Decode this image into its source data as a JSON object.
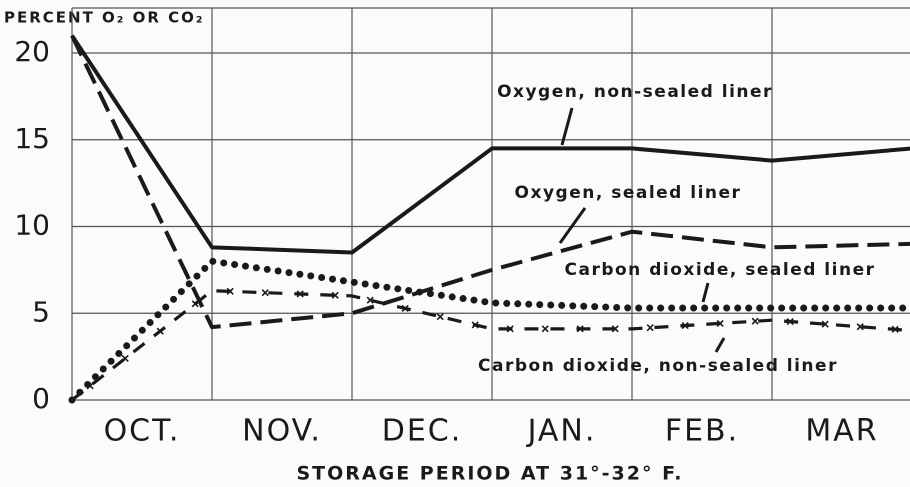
{
  "chart_data": {
    "type": "line",
    "ylabel": "PERCENT O₂ OR CO₂",
    "xlabel": "STORAGE PERIOD AT 31°-32° F.",
    "categories": [
      "OCT.",
      "NOV.",
      "DEC.",
      "JAN.",
      "FEB.",
      "MAR"
    ],
    "x": [
      0,
      1,
      2,
      3,
      4,
      5,
      6
    ],
    "xlim": [
      0,
      6
    ],
    "ylim": [
      0,
      20
    ],
    "yticks": [
      0,
      5,
      10,
      15,
      20
    ],
    "grid": true,
    "series": [
      {
        "name": "Oxygen, non-sealed liner",
        "color": "#1a1a1a",
        "style": "solid",
        "values": [
          21,
          8.8,
          8.5,
          14.5,
          14.5,
          13.8,
          14.5
        ]
      },
      {
        "name": "Oxygen, sealed liner",
        "color": "#1a1a1a",
        "style": "dashed",
        "values": [
          21,
          4.2,
          5,
          7.5,
          9.7,
          8.8,
          9
        ]
      },
      {
        "name": "Carbon dioxide, sealed liner",
        "color": "#1a1a1a",
        "style": "dotted",
        "values": [
          0,
          8,
          6.8,
          5.6,
          5.3,
          5.3,
          5.3
        ]
      },
      {
        "name": "Carbon dioxide, non-sealed liner",
        "color": "#1a1a1a",
        "style": "dash-x",
        "values": [
          0,
          6.3,
          6,
          4.1,
          4.1,
          4.6,
          4
        ]
      }
    ]
  }
}
